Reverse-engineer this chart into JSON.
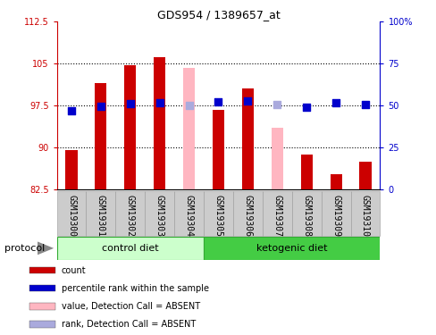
{
  "title": "GDS954 / 1389657_at",
  "samples": [
    "GSM19300",
    "GSM19301",
    "GSM19302",
    "GSM19303",
    "GSM19304",
    "GSM19305",
    "GSM19306",
    "GSM19307",
    "GSM19308",
    "GSM19309",
    "GSM19310"
  ],
  "bar_values": [
    89.5,
    101.5,
    104.8,
    106.2,
    null,
    96.8,
    100.5,
    null,
    88.8,
    85.2,
    87.5
  ],
  "bar_absent_values": [
    null,
    null,
    null,
    null,
    104.2,
    null,
    null,
    93.5,
    null,
    null,
    null
  ],
  "rank_values": [
    47,
    49.5,
    51,
    51.5,
    null,
    52,
    53,
    null,
    49,
    51.5,
    50.5
  ],
  "rank_absent_values": [
    null,
    null,
    null,
    null,
    50,
    null,
    null,
    50.5,
    null,
    null,
    null
  ],
  "bar_color": "#CC0000",
  "bar_absent_color": "#FFB6C1",
  "rank_color": "#0000CC",
  "rank_absent_color": "#AAAADD",
  "ylim_left": [
    82.5,
    112.5
  ],
  "ylim_right": [
    0,
    100
  ],
  "yticks_left": [
    82.5,
    90,
    97.5,
    105,
    112.5
  ],
  "yticks_right": [
    0,
    25,
    50,
    75,
    100
  ],
  "ytick_labels_left": [
    "82.5",
    "90",
    "97.5",
    "105",
    "112.5"
  ],
  "ytick_labels_right": [
    "0",
    "25",
    "50",
    "75",
    "100%"
  ],
  "gridlines": [
    90,
    97.5,
    105
  ],
  "group1_label": "control diet",
  "group2_label": "ketogenic diet",
  "group1_indices": [
    0,
    1,
    2,
    3,
    4
  ],
  "group2_indices": [
    5,
    6,
    7,
    8,
    9,
    10
  ],
  "group1_color": "#CCFFCC",
  "group2_color": "#44CC44",
  "protocol_label": "protocol",
  "legend_items": [
    {
      "label": "count",
      "color": "#CC0000"
    },
    {
      "label": "percentile rank within the sample",
      "color": "#0000CC"
    },
    {
      "label": "value, Detection Call = ABSENT",
      "color": "#FFB6C1"
    },
    {
      "label": "rank, Detection Call = ABSENT",
      "color": "#AAAADD"
    }
  ],
  "bar_width": 0.4,
  "rank_marker_size": 30,
  "label_fontsize": 7,
  "axis_fontsize": 7,
  "title_fontsize": 9
}
